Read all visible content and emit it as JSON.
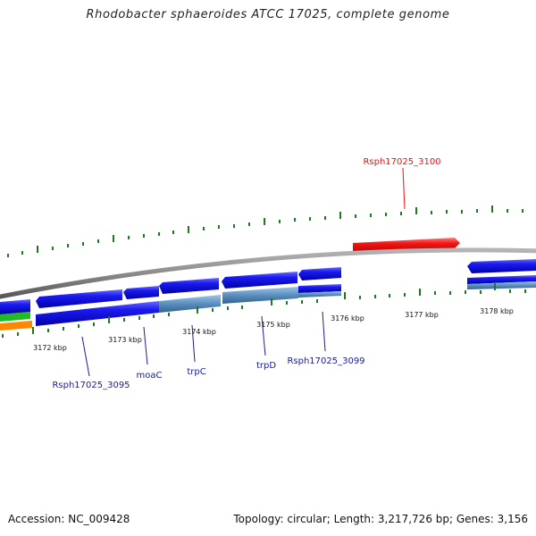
{
  "title": "Rhodobacter sphaeroides ATCC 17025, complete genome",
  "footer": {
    "accession": "Accession: NC_009428",
    "topology": "Topology: circular; Length: 3,217,726 bp; Genes: 3,156"
  },
  "ticks": [
    "3172 kbp",
    "3173 kbp",
    "3174 kbp",
    "3175 kbp",
    "3176 kbp",
    "3177 kbp",
    "3178 kbp"
  ],
  "genes": {
    "rsph3100": "Rsph17025_3100",
    "rsph3095": "Rsph17025_3095",
    "moac": "moaC",
    "trpc": "trpC",
    "trpd": "trpD",
    "rsph3099": "Rsph17025_3099"
  },
  "colors": {
    "highlight": "#ee1111",
    "gene_label": "#1a1aa0",
    "cds": "#1010ee",
    "protein": "#5b8fbf",
    "tick": "#1f7a1f",
    "backbone": "#8a8a8a"
  }
}
